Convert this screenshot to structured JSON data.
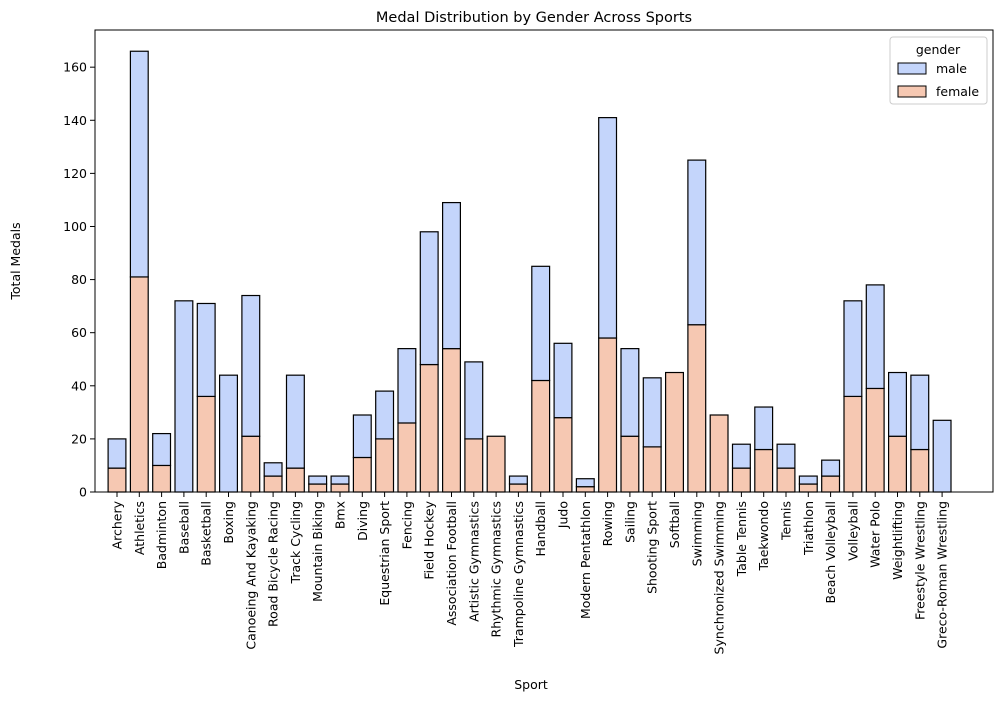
{
  "chart_data": {
    "type": "bar",
    "stacked": true,
    "title": "Medal Distribution by Gender Across Sports",
    "xlabel": "Sport",
    "ylabel": "Total Medals",
    "ylim": [
      0,
      174
    ],
    "yticks": [
      0,
      20,
      40,
      60,
      80,
      100,
      120,
      140,
      160
    ],
    "grid": false,
    "legend": {
      "title": "gender",
      "placement": "top-right"
    },
    "categories": [
      "Archery",
      "Athletics",
      "Badminton",
      "Baseball",
      "Basketball",
      "Boxing",
      "Canoeing And Kayaking",
      "Road Bicycle Racing",
      "Track Cycling",
      "Mountain Biking",
      "Bmx",
      "Diving",
      "Equestrian Sport",
      "Fencing",
      "Field Hockey",
      "Association Football",
      "Artistic Gymnastics",
      "Rhythmic Gymnastics",
      "Trampoline Gymnastics",
      "Handball",
      "Judo",
      "Modern Pentathlon",
      "Rowing",
      "Sailing",
      "Shooting Sport",
      "Softball",
      "Swimming",
      "Synchronized Swimming",
      "Table Tennis",
      "Taekwondo",
      "Tennis",
      "Triathlon",
      "Beach Volleyball",
      "Volleyball",
      "Water Polo",
      "Weightlifting",
      "Freestyle Wrestling",
      "Greco-Roman Wrestling"
    ],
    "series": [
      {
        "name": "male",
        "color": "#c4d5fb",
        "values": [
          11,
          85,
          12,
          72,
          35,
          44,
          53,
          5,
          35,
          3,
          3,
          16,
          18,
          28,
          50,
          55,
          29,
          0,
          3,
          43,
          28,
          3,
          83,
          33,
          26,
          0,
          62,
          0,
          9,
          16,
          9,
          3,
          6,
          36,
          39,
          24,
          28,
          27
        ]
      },
      {
        "name": "female",
        "color": "#f6c8b2",
        "values": [
          9,
          81,
          10,
          0,
          36,
          0,
          21,
          6,
          9,
          3,
          3,
          13,
          20,
          26,
          48,
          54,
          20,
          21,
          3,
          42,
          28,
          2,
          58,
          21,
          17,
          45,
          63,
          29,
          9,
          16,
          9,
          3,
          6,
          36,
          39,
          21,
          16,
          0
        ]
      }
    ]
  }
}
